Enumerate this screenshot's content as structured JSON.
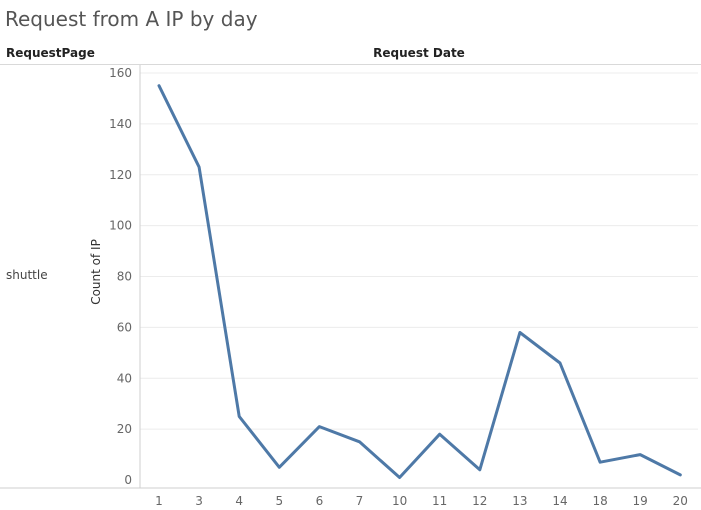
{
  "chart_data": {
    "type": "line",
    "title": "Request from A IP by day",
    "row_header": "RequestPage",
    "column_header": "Request Date",
    "row_label": "shuttle",
    "ylabel": "Count of IP",
    "xlabel": "",
    "categories": [
      "1",
      "3",
      "4",
      "5",
      "6",
      "7",
      "10",
      "11",
      "12",
      "13",
      "14",
      "18",
      "19",
      "20"
    ],
    "series": [
      {
        "values": [
          155,
          123,
          25,
          5,
          21,
          15,
          1,
          18,
          4,
          58,
          46,
          7,
          10,
          2
        ],
        "color": "#4e79a7"
      }
    ],
    "yticks": [
      0,
      20,
      40,
      60,
      80,
      100,
      120,
      140,
      160
    ],
    "ylim": [
      0,
      160
    ],
    "grid": true,
    "legend": "none"
  }
}
